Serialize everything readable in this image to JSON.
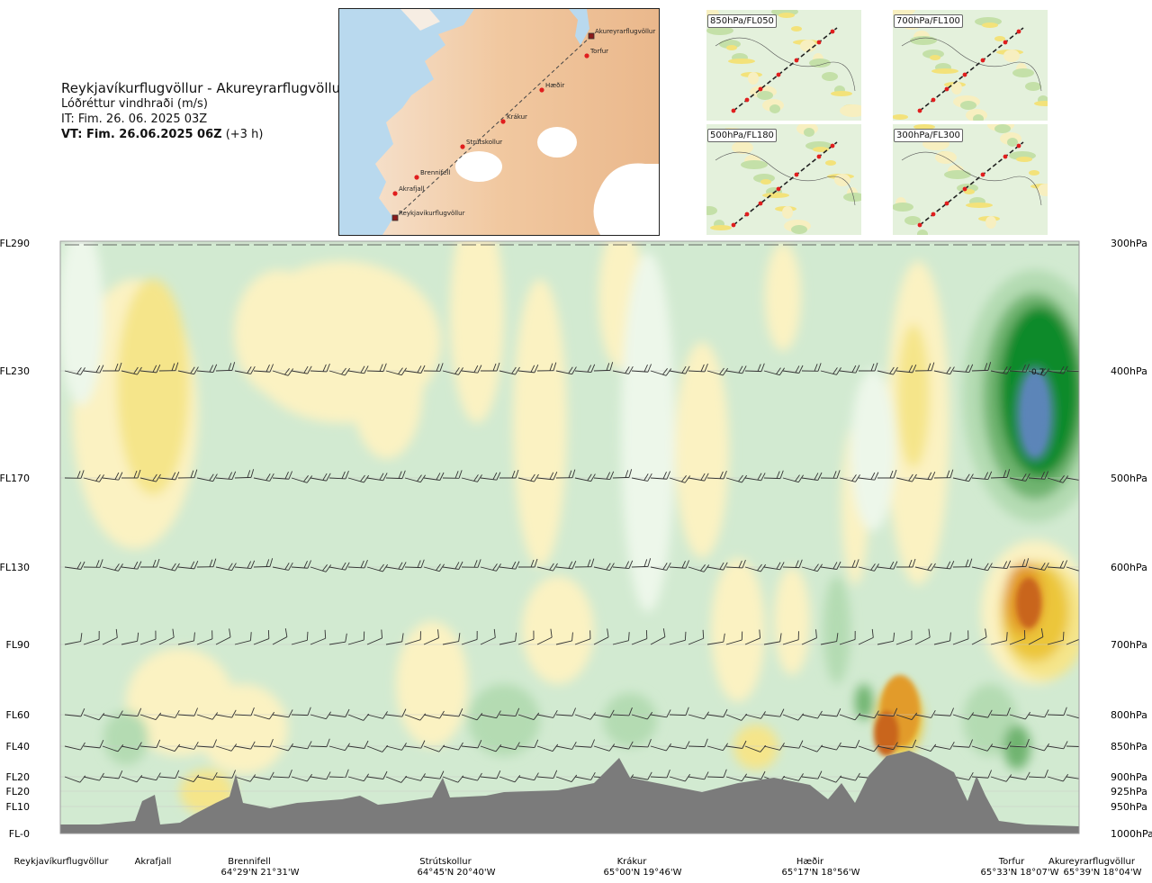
{
  "header": {
    "route": "Reykjavíkurflugvöllur - Akureyrarflugvöllur",
    "variable": "Lóðréttur vindhraði (m/s)",
    "issue_time": "IT: Fim. 26. 06. 2025 03Z",
    "valid_time_bold": "VT: Fim. 26.06.2025 06Z",
    "valid_time_offset": " (+3 h)"
  },
  "route_map": {
    "points": [
      {
        "name": "Akureyrarflugvöllur",
        "kind": "airport"
      },
      {
        "name": "Torfur",
        "kind": "waypoint"
      },
      {
        "name": "Hæðir",
        "kind": "waypoint"
      },
      {
        "name": "Krákur",
        "kind": "waypoint"
      },
      {
        "name": "Strútskollur",
        "kind": "waypoint"
      },
      {
        "name": "Brennifell",
        "kind": "waypoint"
      },
      {
        "name": "Akrafjall",
        "kind": "waypoint"
      },
      {
        "name": "Reykjavíkurflugvöllur",
        "kind": "airport"
      }
    ]
  },
  "mini_maps": [
    {
      "label": "850hPa/FL050"
    },
    {
      "label": "700hPa/FL100"
    },
    {
      "label": "500hPa/FL180"
    },
    {
      "label": "300hPa/FL300"
    }
  ],
  "chart_data": {
    "type": "heatmap",
    "title": "Lóðréttur vindhraði (m/s)",
    "left_axis_labels": [
      "FL290",
      "FL230",
      "FL170",
      "FL130",
      "FL90",
      "FL60",
      "FL40",
      "FL20",
      "FL20",
      "FL10",
      "FL-0"
    ],
    "right_axis_labels": [
      "300hPa",
      "400hPa",
      "500hPa",
      "600hPa",
      "700hPa",
      "800hPa",
      "850hPa",
      "900hPa",
      "925hPa",
      "950hPa",
      "1000hPa"
    ],
    "pressure_levels_hpa": [
      300,
      400,
      500,
      600,
      700,
      800,
      850,
      900,
      925,
      950,
      1000
    ],
    "max_annotation": "0.7",
    "locations": [
      {
        "name": "Reykjavíkurflugvöllur",
        "coord": ""
      },
      {
        "name": "Akrafjall",
        "coord": ""
      },
      {
        "name": "Brennifell",
        "coord": "64°29'N 21°31'W"
      },
      {
        "name": "Strútskollur",
        "coord": "64°45'N 20°40'W"
      },
      {
        "name": "Krákur",
        "coord": "65°00'N 19°46'W"
      },
      {
        "name": "Hæðir",
        "coord": "65°17'N 18°56'W"
      },
      {
        "name": "Torfur",
        "coord": "65°33'N 18°07'W"
      },
      {
        "name": "Akureyrarflugvöllur",
        "coord": "65°39'N 18°04'W"
      }
    ],
    "contours_ms": [
      -0.6,
      -0.4,
      -0.2,
      -0.1,
      0,
      0.1,
      0.2,
      0.4,
      0.6,
      0.8
    ],
    "colors": {
      "strong_up_blue": "#5b85b8",
      "up_dark_green": "#0c8a2c",
      "up_green": "#6fb46f",
      "up_light_green": "#b4dbb2",
      "weak_green": "#d2ead1",
      "neutral": "#edf7ea",
      "weak_yellow": "#fbf2c2",
      "yellow": "#f5e58a",
      "gold": "#ecc63a",
      "orange": "#e29b2a",
      "dark_orange": "#c9651d",
      "terrain": "#7b7b7b"
    }
  }
}
